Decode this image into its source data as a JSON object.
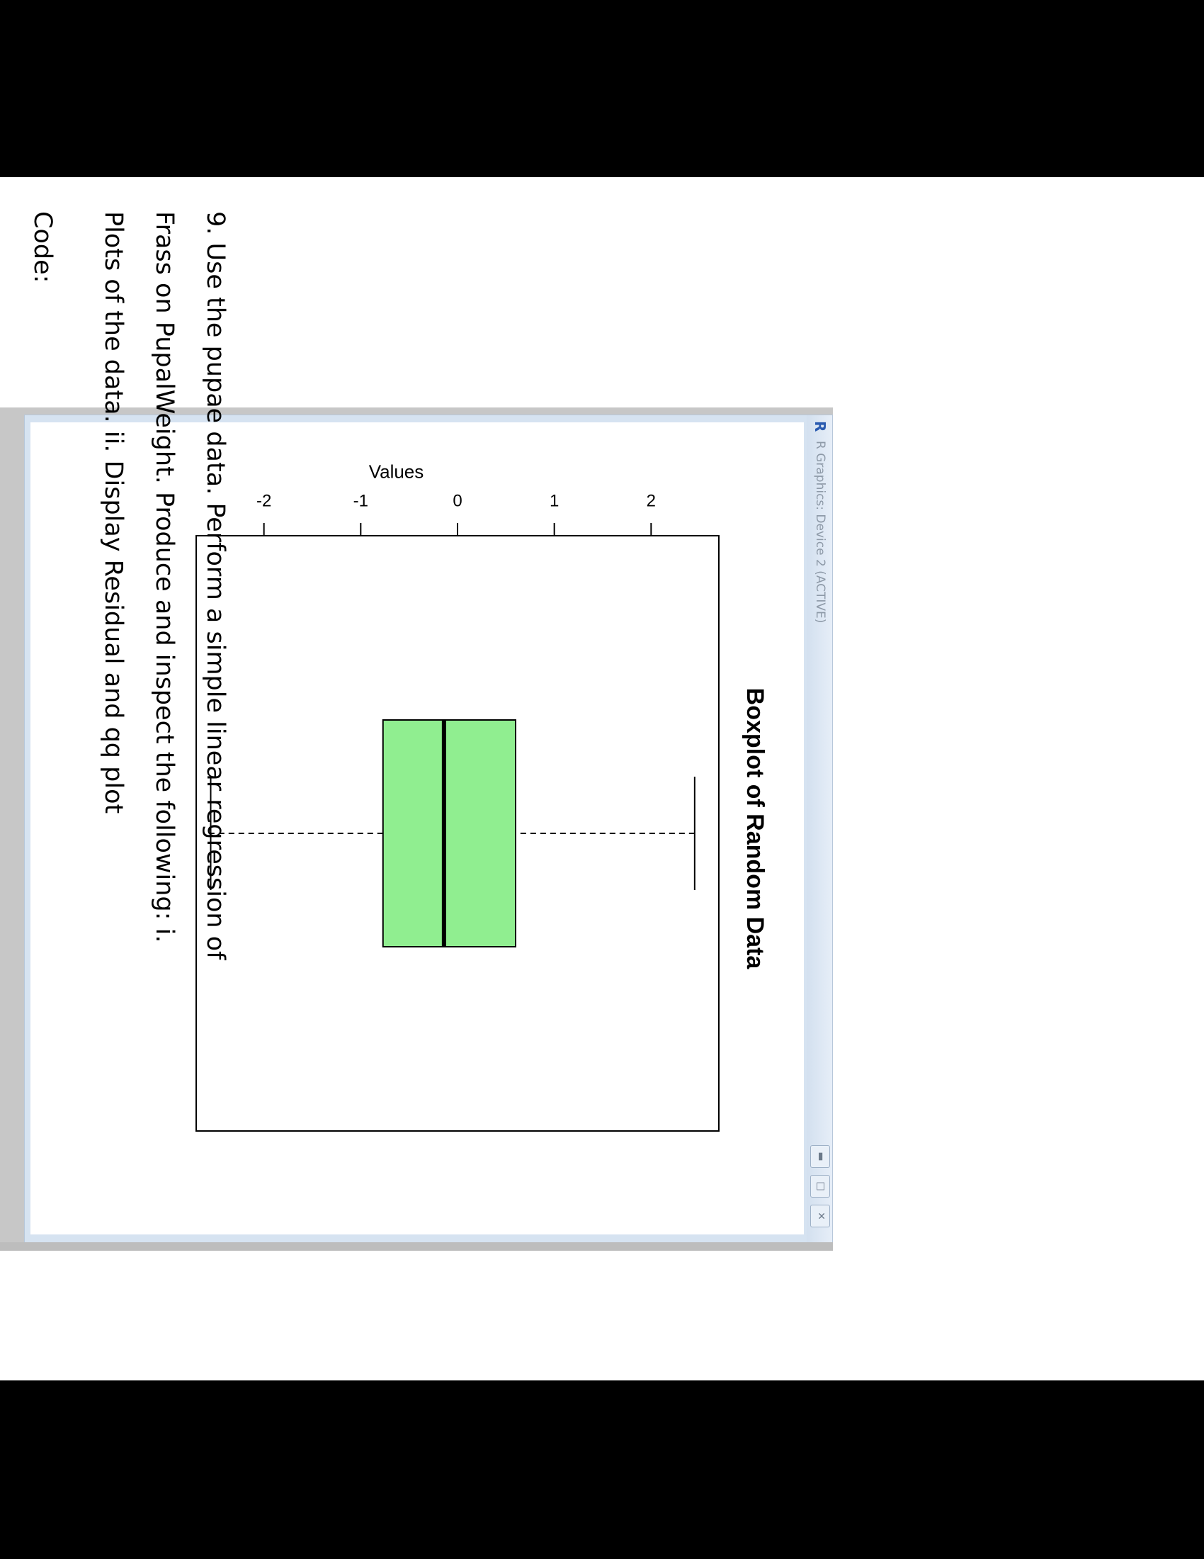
{
  "window": {
    "title": "R Graphics: Device 2 (ACTIVE)",
    "logo": "R",
    "buttons": [
      "minimize-icon",
      "maximize-icon",
      "close-icon"
    ]
  },
  "chart_data": {
    "type": "box",
    "title": "Boxplot of Random Data",
    "ylabel": "Values",
    "yticks": [
      "-2",
      "-1",
      "0",
      "1",
      "2"
    ],
    "ylim": [
      -2.7,
      2.7
    ],
    "box": {
      "min": -2.55,
      "q1": -0.77,
      "median": -0.14,
      "q3": 0.6,
      "max": 2.45
    },
    "fill": "#90ee90"
  },
  "question": {
    "lines": [
      "9. Use the pupae data. Perform a simple linear regression of",
      "Frass on PupalWeight. Produce and inspect the following: i.",
      "Plots of the data. ii. Display Residual and qq plot"
    ],
    "code_label": "Code:"
  }
}
